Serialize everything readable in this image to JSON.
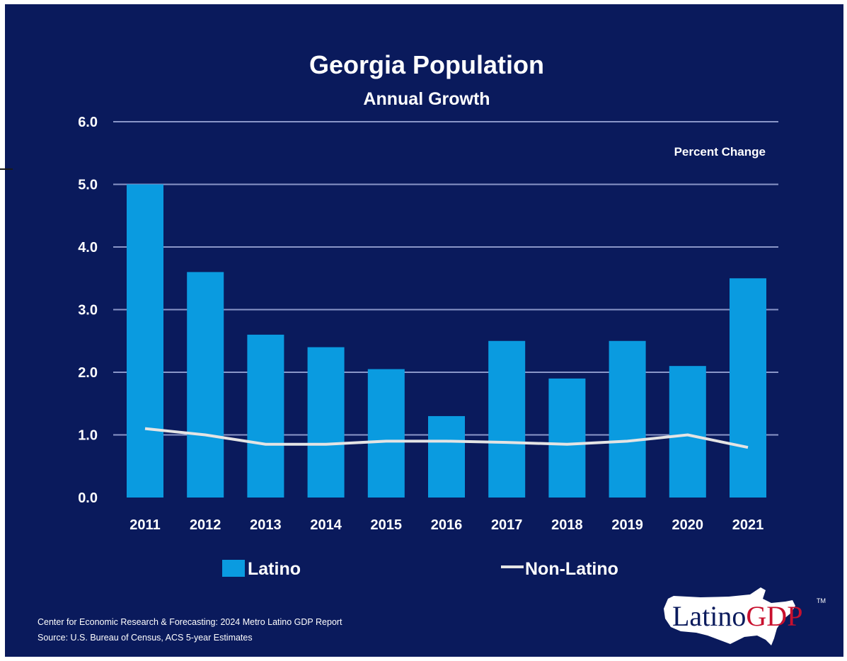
{
  "chart_data": {
    "type": "bar",
    "title": "Georgia Population",
    "subtitle": "Annual Growth",
    "unit_label": "Percent Change",
    "categories": [
      "2011",
      "2012",
      "2013",
      "2014",
      "2015",
      "2016",
      "2017",
      "2018",
      "2019",
      "2020",
      "2021"
    ],
    "y_ticks": [
      "0.0",
      "1.0",
      "2.0",
      "3.0",
      "4.0",
      "5.0",
      "6.0"
    ],
    "ylim": [
      0,
      6
    ],
    "grid": true,
    "legend_position": "bottom",
    "series": [
      {
        "name": "Latino",
        "kind": "bar",
        "color": "#0a9be0",
        "values": [
          5.0,
          3.6,
          2.6,
          2.4,
          2.05,
          1.3,
          2.5,
          1.9,
          2.5,
          2.1,
          3.5
        ]
      },
      {
        "name": "Non-Latino",
        "kind": "line",
        "color": "#e4e4e4",
        "values": [
          1.1,
          1.0,
          0.85,
          0.85,
          0.9,
          0.9,
          0.88,
          0.85,
          0.9,
          1.0,
          0.8
        ]
      }
    ]
  },
  "colors": {
    "background": "#0a1a5c",
    "grid": "#8a96c8",
    "text": "#ffffff"
  },
  "footer": {
    "line1": "Center for Economic Research & Forecasting: 2024 Metro Latino GDP Report",
    "line2": "Source: U.S. Bureau of Census, ACS 5-year Estimates"
  },
  "logo": {
    "part1": "Latino",
    "part2": "GDP",
    "tm": "TM",
    "colors": {
      "part1": "#0a1a5c",
      "part2": "#c8102e"
    }
  }
}
